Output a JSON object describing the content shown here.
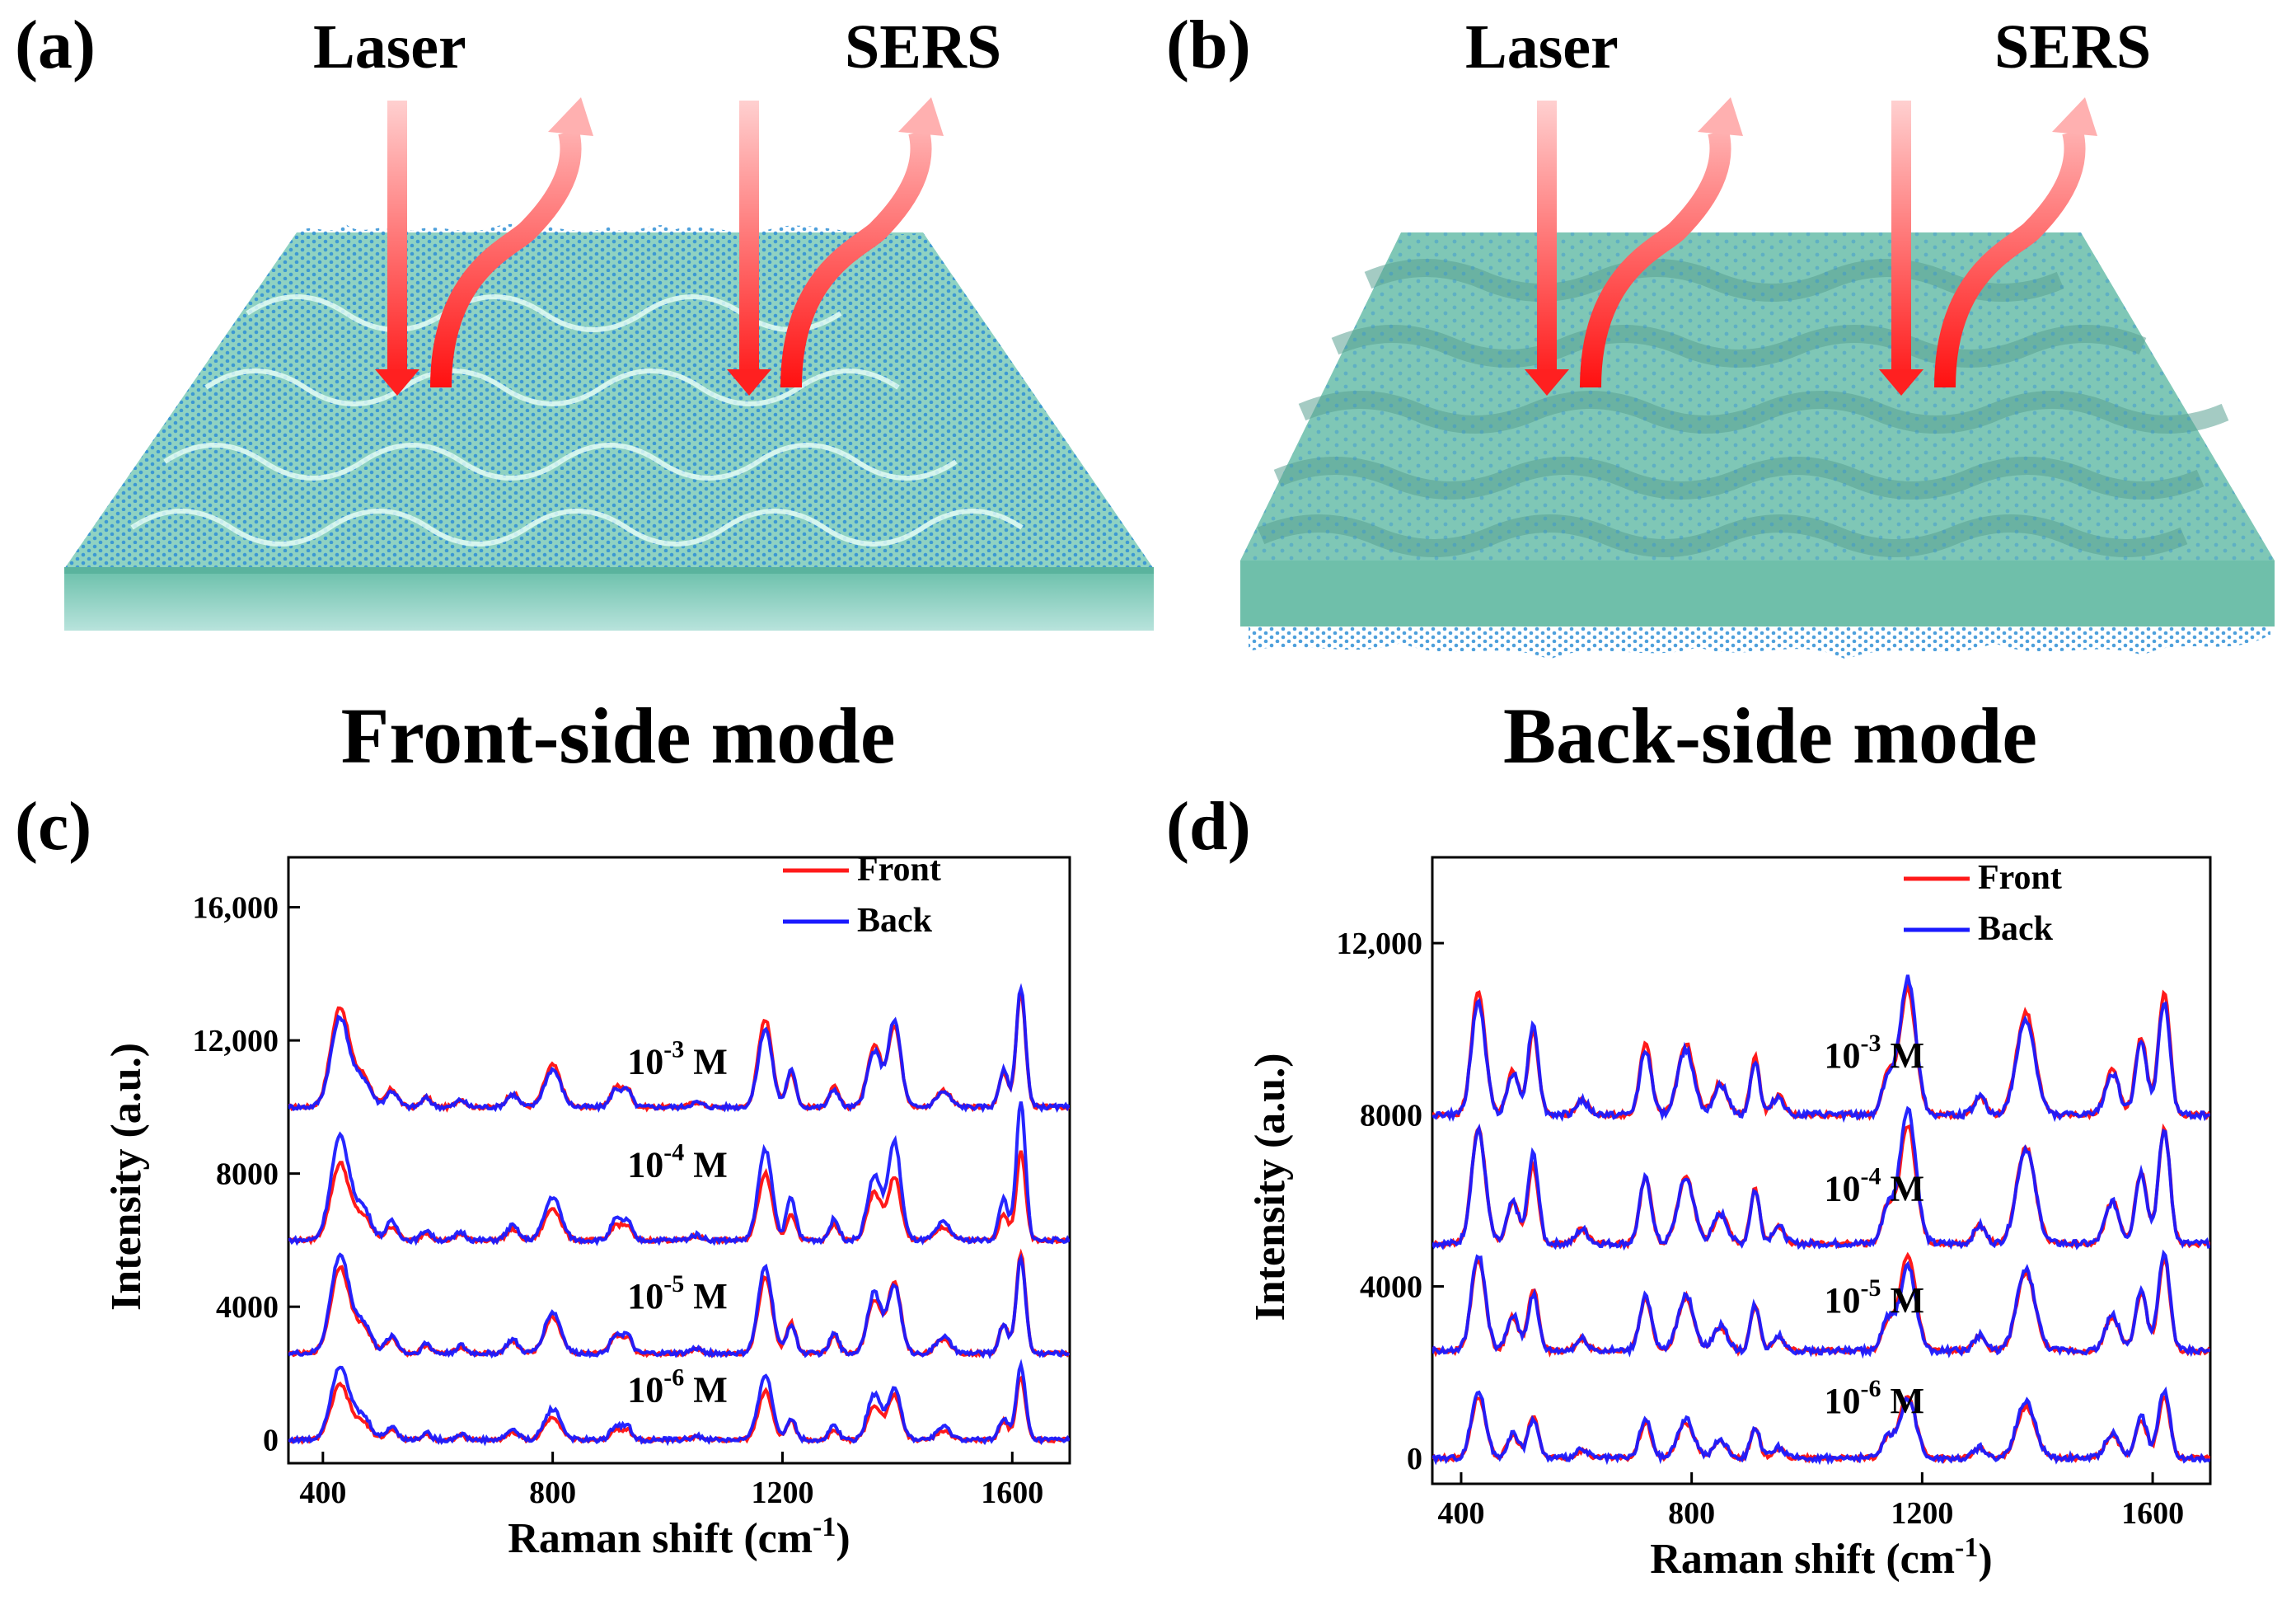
{
  "panels": {
    "a": {
      "panel_label": "(a)",
      "laser_label": "Laser",
      "sers_label": "SERS",
      "caption": "Front-side mode"
    },
    "b": {
      "panel_label": "(b)",
      "laser_label": "Laser",
      "sers_label": "SERS",
      "caption": "Back-side mode"
    },
    "c": {
      "panel_label": "(c)"
    },
    "d": {
      "panel_label": "(d)"
    }
  },
  "colors": {
    "front": "#ff1a1a",
    "back": "#1a1aff",
    "substrate_top": "#7fd3c1",
    "substrate_side": "#9ad8cd",
    "particles": "#2f8fd6",
    "arrow_laser": "#ff3b3b",
    "arrow_sers": "#ff4040"
  },
  "chart_data": [
    {
      "type": "line",
      "panel": "c",
      "xlabel": "Raman shift (cm",
      "xlabel_sup": "-1",
      "xlabel_end": ")",
      "ylabel": "Intensity (a.u.)",
      "xlim": [
        340,
        1700
      ],
      "ylim": [
        -700,
        17500
      ],
      "xticks": [
        400,
        800,
        1200,
        1600
      ],
      "xtick_labels": [
        "400",
        "800",
        "1200",
        "1600"
      ],
      "yticks": [
        0,
        4000,
        8000,
        12000,
        16000
      ],
      "ytick_labels": [
        "0",
        "4000",
        "8000",
        "12,000",
        "16,000"
      ],
      "legend": {
        "position": "top-right",
        "entries": [
          "Front",
          "Back"
        ]
      },
      "peaks": [
        [
          430,
          1.0,
          16
        ],
        [
          470,
          0.3,
          14
        ],
        [
          520,
          0.18,
          10
        ],
        [
          580,
          0.1,
          8
        ],
        [
          640,
          0.08,
          8
        ],
        [
          730,
          0.14,
          10
        ],
        [
          800,
          0.42,
          14
        ],
        [
          910,
          0.2,
          9
        ],
        [
          930,
          0.18,
          8
        ],
        [
          1050,
          0.05,
          10
        ],
        [
          1170,
          0.88,
          12
        ],
        [
          1215,
          0.35,
          8
        ],
        [
          1290,
          0.2,
          8
        ],
        [
          1360,
          0.62,
          12
        ],
        [
          1395,
          0.82,
          11
        ],
        [
          1480,
          0.17,
          12
        ],
        [
          1585,
          0.35,
          8
        ],
        [
          1615,
          1.15,
          8
        ]
      ],
      "series": [
        {
          "name": "Front",
          "label_base": "10",
          "label_exp": "-3",
          "label_unit": " M",
          "baseline": 10000,
          "scale": 3000,
          "jitter": 120,
          "label_x": 930,
          "label_y": 11000
        },
        {
          "name": "Back",
          "baseline": 10000,
          "scale": 3050,
          "jitter": 140
        },
        {
          "name": "Front",
          "label_base": "10",
          "label_exp": "-4",
          "label_unit": " M",
          "baseline": 6000,
          "scale": 2300,
          "jitter": 120,
          "label_x": 930,
          "label_y": 7900
        },
        {
          "name": "Back",
          "baseline": 6000,
          "scale": 3300,
          "jitter": 140
        },
        {
          "name": "Front",
          "label_base": "10",
          "label_exp": "-5",
          "label_unit": " M",
          "baseline": 2600,
          "scale": 2600,
          "jitter": 120,
          "label_x": 930,
          "label_y": 3950
        },
        {
          "name": "Back",
          "baseline": 2600,
          "scale": 2950,
          "jitter": 140
        },
        {
          "name": "Front",
          "label_base": "10",
          "label_exp": "-6",
          "label_unit": " M",
          "baseline": 0,
          "scale": 1650,
          "jitter": 110,
          "label_x": 930,
          "label_y": 1150
        },
        {
          "name": "Back",
          "baseline": 0,
          "scale": 2100,
          "jitter": 140
        }
      ]
    },
    {
      "type": "line",
      "panel": "d",
      "xlabel": "Raman shift (cm",
      "xlabel_sup": "-1",
      "xlabel_end": ")",
      "ylabel": "Intensity (a.u.)",
      "xlim": [
        350,
        1700
      ],
      "ylim": [
        -600,
        14000
      ],
      "xticks": [
        400,
        800,
        1200,
        1600
      ],
      "xtick_labels": [
        "400",
        "800",
        "1200",
        "1600"
      ],
      "yticks": [
        0,
        4000,
        8000,
        12000
      ],
      "ytick_labels": [
        "0",
        "4000",
        "8000",
        "12,000"
      ],
      "legend": {
        "position": "top-right",
        "entries": [
          "Front",
          "Back"
        ]
      },
      "peaks": [
        [
          430,
          0.95,
          12
        ],
        [
          490,
          0.35,
          10
        ],
        [
          525,
          0.65,
          9
        ],
        [
          610,
          0.12,
          10
        ],
        [
          720,
          0.55,
          10
        ],
        [
          790,
          0.55,
          14
        ],
        [
          850,
          0.25,
          12
        ],
        [
          910,
          0.45,
          8
        ],
        [
          950,
          0.15,
          10
        ],
        [
          1140,
          0.3,
          10
        ],
        [
          1175,
          0.98,
          14
        ],
        [
          1300,
          0.15,
          10
        ],
        [
          1380,
          0.8,
          16
        ],
        [
          1530,
          0.35,
          12
        ],
        [
          1580,
          0.6,
          10
        ],
        [
          1620,
          0.95,
          10
        ]
      ],
      "series": [
        {
          "name": "Front",
          "label_base": "10",
          "label_exp": "-3",
          "label_unit": " M",
          "baseline": 8000,
          "scale": 3000,
          "jitter": 120,
          "label_x": 1030,
          "label_y": 9100
        },
        {
          "name": "Back",
          "baseline": 8000,
          "scale": 3150,
          "jitter": 150
        },
        {
          "name": "Front",
          "label_base": "10",
          "label_exp": "-4",
          "label_unit": " M",
          "baseline": 5000,
          "scale": 2800,
          "jitter": 120,
          "label_x": 1030,
          "label_y": 6000
        },
        {
          "name": "Back",
          "baseline": 5000,
          "scale": 2950,
          "jitter": 150
        },
        {
          "name": "Front",
          "label_base": "10",
          "label_exp": "-5",
          "label_unit": " M",
          "baseline": 2500,
          "scale": 2250,
          "jitter": 120,
          "label_x": 1030,
          "label_y": 3400
        },
        {
          "name": "Back",
          "baseline": 2500,
          "scale": 2350,
          "jitter": 150
        },
        {
          "name": "Front",
          "label_base": "10",
          "label_exp": "-6",
          "label_unit": " M",
          "baseline": 0,
          "scale": 1500,
          "jitter": 110,
          "label_x": 1030,
          "label_y": 1050
        },
        {
          "name": "Back",
          "baseline": 0,
          "scale": 1550,
          "jitter": 140
        }
      ]
    }
  ]
}
